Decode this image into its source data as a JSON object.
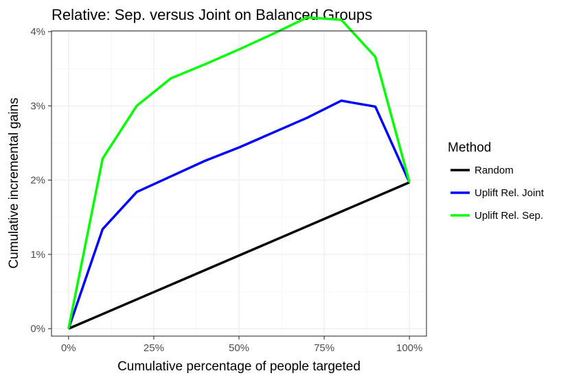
{
  "chart_data": {
    "type": "line",
    "title": "Relative: Sep. versus Joint on Balanced Groups",
    "xlabel": "Cumulative percentage of people targeted",
    "ylabel": "Cumulative incremental gains",
    "xlim": [
      -0.05,
      1.05
    ],
    "ylim": [
      -0.001,
      0.0401
    ],
    "x_ticks": [
      0,
      0.25,
      0.5,
      0.75,
      1.0
    ],
    "x_tick_labels": [
      "0%",
      "25%",
      "50%",
      "75%",
      "100%"
    ],
    "y_ticks": [
      0,
      0.01,
      0.02,
      0.03,
      0.04
    ],
    "y_tick_labels": [
      "0%",
      "1%",
      "2%",
      "3%",
      "4%"
    ],
    "grid": true,
    "legend": {
      "title": "Method",
      "position": "right"
    },
    "series": [
      {
        "name": "Random",
        "color": "#000000",
        "x": [
          0,
          1.0
        ],
        "y": [
          0,
          0.0197
        ]
      },
      {
        "name": "Uplift Rel. Joint",
        "color": "#0000ff",
        "x": [
          0,
          0.1,
          0.2,
          0.3,
          0.4,
          0.5,
          0.6,
          0.7,
          0.8,
          0.9,
          1.0
        ],
        "y": [
          0,
          0.0134,
          0.0184,
          0.0205,
          0.0226,
          0.0244,
          0.0264,
          0.0284,
          0.0307,
          0.0299,
          0.0197
        ]
      },
      {
        "name": "Uplift Rel. Sep.",
        "color": "#00ff00",
        "x": [
          0,
          0.1,
          0.2,
          0.3,
          0.4,
          0.5,
          0.6,
          0.7,
          0.8,
          0.9,
          1.0
        ],
        "y": [
          0,
          0.0229,
          0.03,
          0.0337,
          0.0356,
          0.0376,
          0.0397,
          0.0419,
          0.0416,
          0.0366,
          0.0197
        ]
      }
    ]
  }
}
